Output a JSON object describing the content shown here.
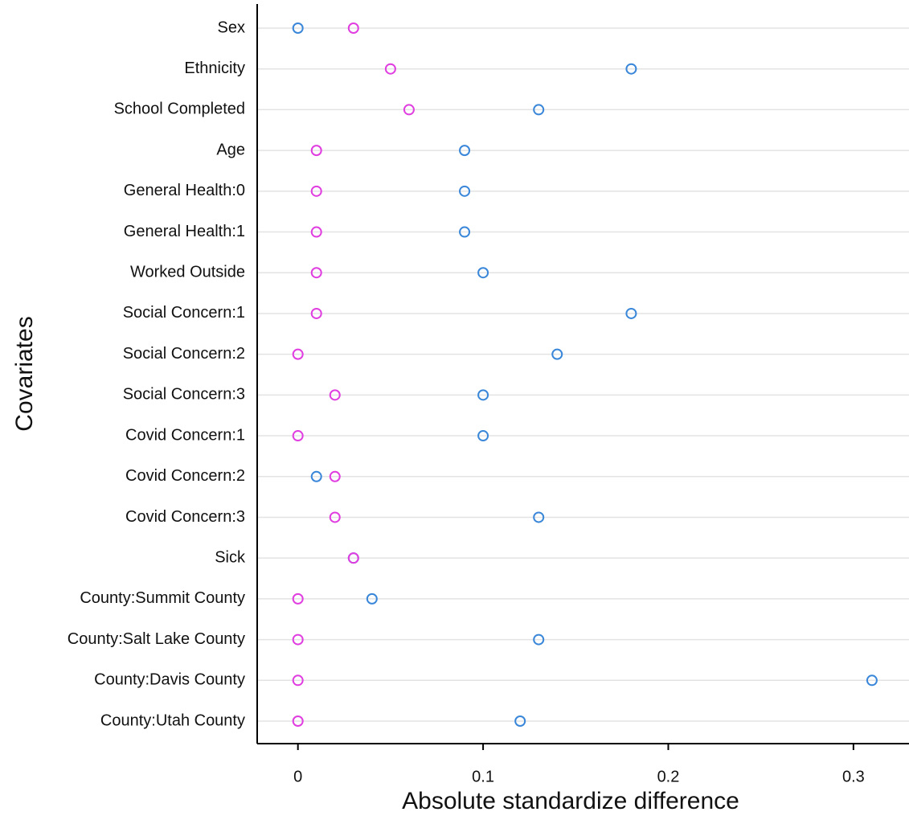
{
  "chart_data": {
    "type": "dot",
    "x_label": "Absolute standardize difference",
    "y_label": "Covariates",
    "categories": [
      "Sex",
      "Ethnicity",
      "School Completed",
      "Age",
      "General Health:0",
      "General Health:1",
      "Worked Outside",
      "Social Concern:1",
      "Social Concern:2",
      "Social Concern:3",
      "Covid Concern:1",
      "Covid Concern:2",
      "Covid Concern:3",
      "Sick",
      "County:Summit County",
      "County:Salt Lake County",
      "County:Davis County",
      "County:Utah County"
    ],
    "series": [
      {
        "color": "#3a87d9",
        "values": [
          0,
          0.18,
          0.13,
          0.09,
          0.09,
          0.09,
          0.1,
          0.18,
          0.14,
          0.1,
          0.1,
          0.01,
          0.13,
          0.03,
          0.04,
          0.13,
          0.31,
          0.12
        ]
      },
      {
        "color": "#e03ee0",
        "values": [
          0.03,
          0.05,
          0.06,
          0.01,
          0.01,
          0.01,
          0.01,
          0.01,
          0,
          0.02,
          0,
          0.02,
          0.02,
          0.03,
          0,
          0,
          0,
          0
        ]
      }
    ],
    "xlim": [
      -0.022,
      0.33
    ],
    "xticks": [
      0,
      0.1,
      0.2,
      0.3
    ],
    "grid": true
  }
}
